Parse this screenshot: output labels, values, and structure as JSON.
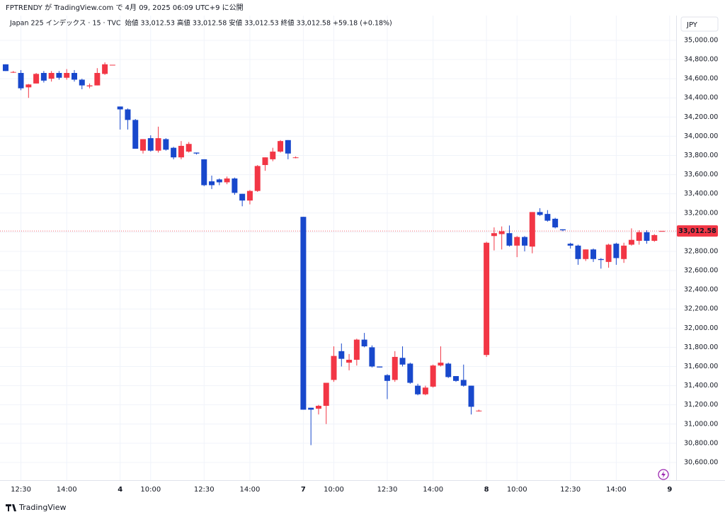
{
  "header": {
    "published": "FPTRENDY が TradingView.com で 4月 09, 2025 06:09 UTC+9 に公開"
  },
  "legend": {
    "symbol": "Japan 225 インデックス · 15 · TVC",
    "items": [
      {
        "label": "始値",
        "value": "33,012.53"
      },
      {
        "label": "高値",
        "value": "33,012.58"
      },
      {
        "label": "安値",
        "value": "33,012.53"
      },
      {
        "label": "終値",
        "value": "33,012.58"
      }
    ],
    "change": "+59.18 (+0.18%)"
  },
  "footer": {
    "brand": "TradingView"
  },
  "chart_data": {
    "type": "candlestick",
    "currency": "JPY",
    "up_color": "#f23645",
    "down_color": "#1848cc",
    "grid": true,
    "last_price": {
      "value": 33012.58,
      "label": "33,012.58"
    },
    "ylim": [
      30415,
      35258
    ],
    "yticks": [
      {
        "value": 30600,
        "label": "30,600.00"
      },
      {
        "value": 30800,
        "label": "30,800.00"
      },
      {
        "value": 31000,
        "label": "31,000.00"
      },
      {
        "value": 31200,
        "label": "31,200.00"
      },
      {
        "value": 31400,
        "label": "31,400.00"
      },
      {
        "value": 31600,
        "label": "31,600.00"
      },
      {
        "value": 31800,
        "label": "31,800.00"
      },
      {
        "value": 32000,
        "label": "32,000.00"
      },
      {
        "value": 32200,
        "label": "32,200.00"
      },
      {
        "value": 32400,
        "label": "32,400.00"
      },
      {
        "value": 32600,
        "label": "32,600.00"
      },
      {
        "value": 32800,
        "label": "32,800.00"
      },
      {
        "value": 33000,
        "label": "33,000.00"
      },
      {
        "value": 33200,
        "label": "33,200.00"
      },
      {
        "value": 33400,
        "label": "33,400.00"
      },
      {
        "value": 33600,
        "label": "33,600.00"
      },
      {
        "value": 33800,
        "label": "33,800.00"
      },
      {
        "value": 34000,
        "label": "34,000.00"
      },
      {
        "value": 34200,
        "label": "34,200.00"
      },
      {
        "value": 34400,
        "label": "34,400.00"
      },
      {
        "value": 34600,
        "label": "34,600.00"
      },
      {
        "value": 34800,
        "label": "34,800.00"
      },
      {
        "value": 35000,
        "label": "35,000.00"
      }
    ],
    "xlim": [
      -0.74,
      87.85
    ],
    "xticks": [
      {
        "value": 2,
        "label": "12:30"
      },
      {
        "value": 8,
        "label": "14:00"
      },
      {
        "value": 15,
        "label": "4"
      },
      {
        "value": 19,
        "label": "10:00"
      },
      {
        "value": 26,
        "label": "12:30"
      },
      {
        "value": 32,
        "label": "14:00"
      },
      {
        "value": 39,
        "label": "7"
      },
      {
        "value": 43,
        "label": "10:00"
      },
      {
        "value": 50,
        "label": "12:30"
      },
      {
        "value": 56,
        "label": "14:00"
      },
      {
        "value": 63,
        "label": "8"
      },
      {
        "value": 67,
        "label": "10:00"
      },
      {
        "value": 74,
        "label": "12:30"
      },
      {
        "value": 80,
        "label": "14:00"
      },
      {
        "value": 87,
        "label": "9"
      }
    ],
    "x": [
      0,
      1,
      2,
      3,
      4,
      5,
      6,
      7,
      8,
      9,
      10,
      11,
      12,
      13,
      14,
      15,
      16,
      17,
      18,
      19,
      20,
      21,
      22,
      23,
      24,
      25,
      26,
      27,
      28,
      29,
      30,
      31,
      32,
      33,
      34,
      35,
      36,
      37,
      38,
      39,
      40,
      41,
      42,
      43,
      44,
      45,
      46,
      47,
      48,
      49,
      50,
      51,
      52,
      53,
      54,
      55,
      56,
      57,
      58,
      59,
      60,
      61,
      62,
      63,
      64,
      65,
      66,
      67,
      68,
      69,
      70,
      71,
      72,
      73,
      74,
      75,
      76,
      77,
      78,
      79,
      80,
      81,
      82,
      83,
      84,
      85,
      86
    ],
    "open": [
      34750,
      34670,
      34660,
      34510,
      34550,
      34660,
      34600,
      34660,
      34610,
      34660,
      34590,
      34520,
      34530,
      34650,
      34740,
      34310,
      34280,
      34170,
      33850,
      33980,
      33850,
      33970,
      33880,
      33780,
      33840,
      33830,
      33760,
      33530,
      33550,
      33520,
      33560,
      33400,
      33330,
      33430,
      33700,
      33760,
      33840,
      33960,
      33780,
      33160,
      31170,
      31160,
      31190,
      31460,
      31760,
      31640,
      31670,
      31880,
      31800,
      31600,
      31510,
      31460,
      31690,
      31630,
      31400,
      31310,
      31390,
      31610,
      31630,
      31500,
      31460,
      31400,
      31140,
      31720,
      32960,
      32980,
      32990,
      32860,
      32950,
      32850,
      33210,
      33190,
      33140,
      33030,
      32880,
      32860,
      32720,
      32820,
      32720,
      32690,
      32880,
      32720,
      32870,
      32910,
      33000,
      32910,
      33012.53
    ],
    "high": [
      34750,
      34680,
      34690,
      34545,
      34660,
      34680,
      34680,
      34680,
      34700,
      34690,
      34600,
      34550,
      34710,
      34770,
      34745,
      34310,
      34290,
      34180,
      33970,
      34010,
      34100,
      33980,
      33890,
      33950,
      33940,
      33830,
      33760,
      33590,
      33560,
      33580,
      33570,
      33400,
      33440,
      33700,
      33780,
      33880,
      33960,
      33960,
      33790,
      33160,
      31170,
      31200,
      31430,
      31810,
      31840,
      31730,
      31890,
      31950,
      31820,
      31600,
      31520,
      31760,
      31810,
      31640,
      31420,
      31400,
      31620,
      31810,
      31640,
      31500,
      31620,
      31400,
      31150,
      32900,
      33050,
      33060,
      33070,
      32960,
      32960,
      33210,
      33250,
      33230,
      33150,
      33030,
      32890,
      32870,
      32820,
      32830,
      32730,
      32880,
      32890,
      32890,
      33040,
      33020,
      33020,
      32980,
      33012.58
    ],
    "low": [
      34680,
      34660,
      34480,
      34400,
      34550,
      34560,
      34570,
      34590,
      34590,
      34570,
      34490,
      34500,
      34530,
      34640,
      34740,
      34070,
      34070,
      33870,
      33820,
      33840,
      33830,
      33850,
      33760,
      33760,
      33830,
      33810,
      33480,
      33450,
      33490,
      33500,
      33390,
      33270,
      33290,
      33420,
      33640,
      33740,
      33830,
      33760,
      33770,
      31150,
      30780,
      31100,
      31000,
      31440,
      31600,
      31560,
      31610,
      31800,
      31590,
      31590,
      31260,
      31440,
      31600,
      31420,
      31300,
      31300,
      31380,
      31600,
      31480,
      31440,
      31390,
      31100,
      31130,
      31700,
      32810,
      32820,
      32850,
      32740,
      32800,
      32780,
      33170,
      33110,
      33040,
      33010,
      32830,
      32660,
      32700,
      32690,
      32620,
      32630,
      32660,
      32680,
      32860,
      32870,
      32880,
      32900,
      33012.53
    ],
    "close": [
      34680,
      34670,
      34500,
      34540,
      34650,
      34580,
      34660,
      34610,
      34660,
      34590,
      34530,
      34530,
      34660,
      34750,
      34745,
      34280,
      34170,
      33870,
      33970,
      33850,
      33980,
      33860,
      33780,
      33900,
      33920,
      33820,
      33490,
      33490,
      33520,
      33560,
      33410,
      33330,
      33430,
      33690,
      33780,
      33840,
      33950,
      33820,
      33780,
      31150,
      31150,
      31190,
      31430,
      31710,
      31680,
      31670,
      31880,
      31810,
      31600,
      31590,
      31450,
      31700,
      31620,
      31430,
      31310,
      31380,
      31610,
      31640,
      31490,
      31450,
      31400,
      31180,
      31140,
      32890,
      32990,
      33010,
      32860,
      32950,
      32860,
      33210,
      33180,
      33120,
      33050,
      33020,
      32860,
      32720,
      32820,
      32720,
      32710,
      32870,
      32730,
      32860,
      32920,
      33000,
      32910,
      32970,
      33012.58
    ]
  }
}
